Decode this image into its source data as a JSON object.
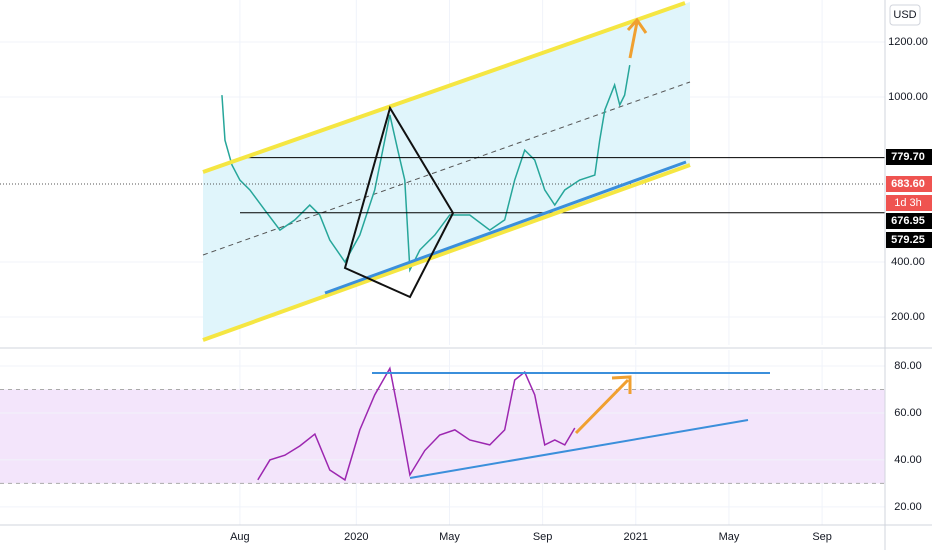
{
  "chart_data": [
    {
      "type": "line",
      "currency": "USD",
      "x": [
        -0.77,
        -0.64,
        -0.34,
        0,
        0.43,
        1.07,
        1.72,
        2.36,
        3.0,
        3.43,
        3.86,
        4.51,
        5.15,
        5.79,
        6.44,
        6.78,
        7.08,
        7.3,
        7.73,
        8.37,
        9.01,
        9.87,
        10.73,
        11.37,
        11.8,
        12.23,
        12.66,
        13.09,
        13.52,
        13.95,
        14.59,
        15.24,
        15.45,
        15.67,
        16.09,
        16.31,
        16.52,
        16.74
      ],
      "series": [
        {
          "color": "#26a69a",
          "values": [
            1007,
            843,
            753,
            698,
            662,
            589,
            516,
            553,
            607,
            571,
            480,
            400,
            498,
            662,
            935,
            807,
            698,
            371,
            444,
            498,
            571,
            571,
            516,
            553,
            698,
            807,
            771,
            662,
            607,
            662,
            698,
            716,
            843,
            953,
            1044,
            971,
            1007,
            1116
          ]
        }
      ],
      "ylim": [
        98,
        1353
      ],
      "yticks": [
        {
          "value": 200,
          "label": "200.00"
        },
        {
          "value": 400,
          "label": "400.00"
        },
        {
          "value": 1000,
          "label": "1000.00"
        },
        {
          "value": 1200,
          "label": "1200.00"
        }
      ],
      "xlim": [
        -10.3,
        27.7
      ],
      "xticks": [
        {
          "value": 0,
          "label": "Aug"
        },
        {
          "value": 5,
          "label": "2020"
        },
        {
          "value": 9,
          "label": "May"
        },
        {
          "value": 13,
          "label": "Sep"
        },
        {
          "value": 17,
          "label": "2021"
        },
        {
          "value": 21,
          "label": "May"
        },
        {
          "value": 25,
          "label": "Sep"
        }
      ],
      "price_labels": [
        {
          "value": 779.7,
          "label": "779.70",
          "color": "#000000"
        },
        {
          "value": 683.6,
          "label": "683.60",
          "color": "#ef5350"
        },
        {
          "value": 676.95,
          "label": "676.95",
          "color": "#000000"
        },
        {
          "value": 579.25,
          "label": "579.25",
          "color": "#000000"
        }
      ],
      "countdown": "1d 3h",
      "grid": true
    },
    {
      "type": "line",
      "x": [
        0.77,
        1.29,
        1.93,
        2.58,
        3.22,
        3.86,
        4.51,
        5.15,
        5.79,
        6.44,
        6.87,
        7.3,
        7.94,
        8.58,
        9.23,
        9.87,
        10.73,
        11.37,
        11.8,
        12.23,
        12.66,
        13.09,
        13.52,
        13.95,
        14.38
      ],
      "series": [
        {
          "color": "#9c27b0",
          "values": [
            31.5,
            40,
            42,
            46,
            51,
            35.7,
            31.5,
            52.8,
            67.7,
            79,
            57,
            33.6,
            44,
            50.6,
            52.8,
            48.5,
            46.4,
            52.8,
            74,
            77.4,
            67.7,
            46.4,
            48.5,
            46.4,
            53.6
          ]
        }
      ],
      "ylim": [
        12.3,
        86.8
      ],
      "yticks": [
        {
          "value": 20,
          "label": "20.00"
        },
        {
          "value": 40,
          "label": "40.00"
        },
        {
          "value": 60,
          "label": "60.00"
        },
        {
          "value": 80,
          "label": "80.00"
        }
      ],
      "band": [
        30,
        70
      ],
      "xlim": [
        -10.3,
        27.7
      ]
    }
  ]
}
